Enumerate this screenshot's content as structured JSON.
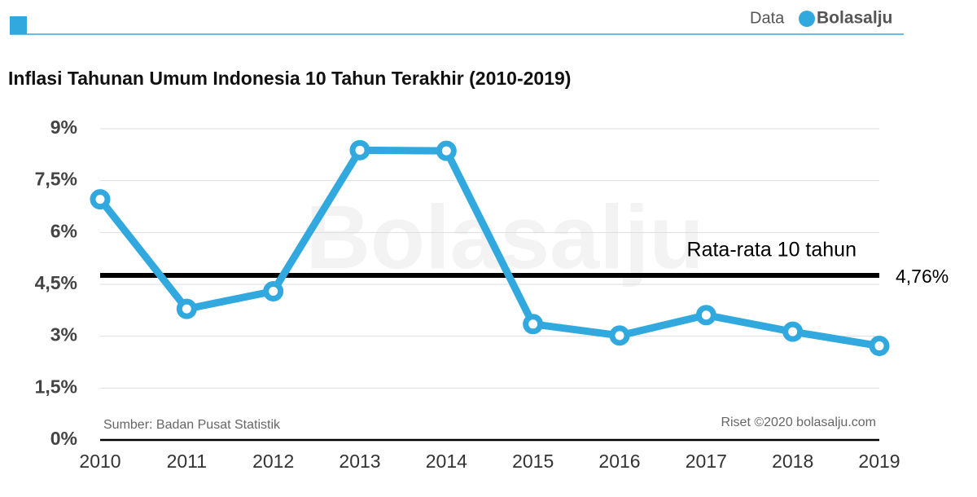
{
  "header": {
    "prefix": "Data",
    "brand": "Bolasalju"
  },
  "chart_data": {
    "type": "line",
    "title": "Inflasi Tahunan Umum Indonesia 10 Tahun Terakhir (2010-2019)",
    "categories": [
      "2010",
      "2011",
      "2012",
      "2013",
      "2014",
      "2015",
      "2016",
      "2017",
      "2018",
      "2019"
    ],
    "series": [
      {
        "name": "Inflasi",
        "color": "#31a9df",
        "values": [
          6.96,
          3.79,
          4.3,
          8.38,
          8.36,
          3.35,
          3.02,
          3.61,
          3.13,
          2.72
        ]
      }
    ],
    "ylim": [
      0,
      9
    ],
    "yticks": [
      {
        "value": 0,
        "label": "0%"
      },
      {
        "value": 1.5,
        "label": "1,5%"
      },
      {
        "value": 3,
        "label": "3%"
      },
      {
        "value": 4.5,
        "label": "4,5%"
      },
      {
        "value": 6,
        "label": "6%"
      },
      {
        "value": 7.5,
        "label": "7,5%"
      },
      {
        "value": 9,
        "label": "9%"
      }
    ],
    "grid": true,
    "reference_line": {
      "value": 4.76,
      "value_label": "4,76%",
      "label": "Rata-rata 10 tahun",
      "color": "#000000"
    },
    "watermark": "Bolasalju",
    "source": "Sumber: Badan Pusat Statistik",
    "credit": "Riset ©2020 bolasalju.com"
  }
}
